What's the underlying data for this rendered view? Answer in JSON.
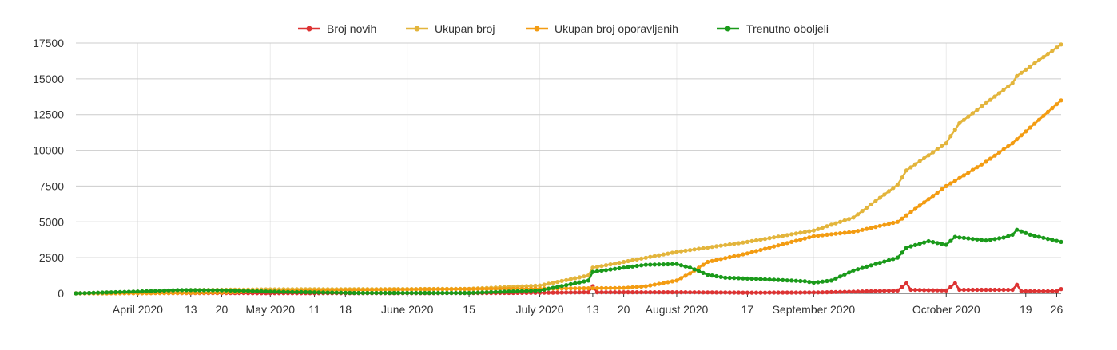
{
  "chart_data": {
    "type": "line",
    "title": "",
    "xlabel": "",
    "ylabel": "",
    "x_range": [
      "2020-03-18",
      "2020-10-27"
    ],
    "ylim": [
      0,
      17500
    ],
    "y_ticks": [
      0,
      2500,
      5000,
      7500,
      10000,
      12500,
      15000,
      17500
    ],
    "y_tick_labels": [
      "0",
      "2500",
      "5000",
      "7500",
      "10000",
      "12500",
      "15000",
      "17500"
    ],
    "x_ticks": [
      {
        "date": "2020-04-01",
        "label": "April 2020"
      },
      {
        "date": "2020-04-13",
        "label": "13"
      },
      {
        "date": "2020-04-20",
        "label": "20"
      },
      {
        "date": "2020-05-01",
        "label": "May 2020"
      },
      {
        "date": "2020-05-11",
        "label": "11"
      },
      {
        "date": "2020-05-18",
        "label": "18"
      },
      {
        "date": "2020-06-01",
        "label": "June 2020"
      },
      {
        "date": "2020-06-15",
        "label": "15"
      },
      {
        "date": "2020-07-01",
        "label": "July 2020"
      },
      {
        "date": "2020-07-13",
        "label": "13"
      },
      {
        "date": "2020-07-20",
        "label": "20"
      },
      {
        "date": "2020-08-01",
        "label": "August 2020"
      },
      {
        "date": "2020-08-17",
        "label": "17"
      },
      {
        "date": "2020-09-01",
        "label": "September 2020"
      },
      {
        "date": "2020-10-01",
        "label": "October 2020"
      },
      {
        "date": "2020-10-19",
        "label": "19"
      },
      {
        "date": "2020-10-26",
        "label": "26"
      }
    ],
    "grid": true,
    "legend_position": "top-center",
    "series": [
      {
        "name": "Broj novih",
        "color": "#dd3333",
        "anchors": [
          [
            "2020-03-18",
            5
          ],
          [
            "2020-04-01",
            30
          ],
          [
            "2020-04-20",
            15
          ],
          [
            "2020-05-15",
            10
          ],
          [
            "2020-06-15",
            15
          ],
          [
            "2020-07-01",
            40
          ],
          [
            "2020-07-12",
            80
          ],
          [
            "2020-07-13",
            500
          ],
          [
            "2020-07-14",
            80
          ],
          [
            "2020-08-01",
            80
          ],
          [
            "2020-08-17",
            50
          ],
          [
            "2020-09-01",
            60
          ],
          [
            "2020-09-10",
            120
          ],
          [
            "2020-09-20",
            200
          ],
          [
            "2020-09-22",
            700
          ],
          [
            "2020-09-23",
            250
          ],
          [
            "2020-10-01",
            200
          ],
          [
            "2020-10-03",
            700
          ],
          [
            "2020-10-04",
            250
          ],
          [
            "2020-10-16",
            250
          ],
          [
            "2020-10-17",
            600
          ],
          [
            "2020-10-18",
            150
          ],
          [
            "2020-10-26",
            150
          ],
          [
            "2020-10-27",
            300
          ]
        ]
      },
      {
        "name": "Ukupan broj",
        "color": "#e3b53c",
        "anchors": [
          [
            "2020-03-18",
            0
          ],
          [
            "2020-04-01",
            120
          ],
          [
            "2020-04-13",
            230
          ],
          [
            "2020-05-01",
            280
          ],
          [
            "2020-06-01",
            300
          ],
          [
            "2020-06-15",
            320
          ],
          [
            "2020-07-01",
            550
          ],
          [
            "2020-07-12",
            1250
          ],
          [
            "2020-07-13",
            1800
          ],
          [
            "2020-07-20",
            2200
          ],
          [
            "2020-08-01",
            2900
          ],
          [
            "2020-08-17",
            3600
          ],
          [
            "2020-09-01",
            4400
          ],
          [
            "2020-09-10",
            5300
          ],
          [
            "2020-09-20",
            7600
          ],
          [
            "2020-09-22",
            8600
          ],
          [
            "2020-10-01",
            10500
          ],
          [
            "2020-10-02",
            11000
          ],
          [
            "2020-10-04",
            11900
          ],
          [
            "2020-10-16",
            14700
          ],
          [
            "2020-10-17",
            15200
          ],
          [
            "2020-10-27",
            17400
          ]
        ]
      },
      {
        "name": "Ukupan broj oporavljenih",
        "color": "#f39c12",
        "anchors": [
          [
            "2020-03-18",
            0
          ],
          [
            "2020-04-01",
            5
          ],
          [
            "2020-04-20",
            50
          ],
          [
            "2020-05-01",
            180
          ],
          [
            "2020-06-01",
            270
          ],
          [
            "2020-06-15",
            300
          ],
          [
            "2020-07-01",
            330
          ],
          [
            "2020-07-20",
            380
          ],
          [
            "2020-07-25",
            500
          ],
          [
            "2020-08-01",
            900
          ],
          [
            "2020-08-04",
            1400
          ],
          [
            "2020-08-08",
            2200
          ],
          [
            "2020-08-17",
            2800
          ],
          [
            "2020-09-01",
            4000
          ],
          [
            "2020-09-10",
            4300
          ],
          [
            "2020-09-20",
            5000
          ],
          [
            "2020-10-01",
            7500
          ],
          [
            "2020-10-10",
            9200
          ],
          [
            "2020-10-16",
            10500
          ],
          [
            "2020-10-27",
            13500
          ]
        ]
      },
      {
        "name": "Trenutno oboljeli",
        "color": "#1a9a1a",
        "anchors": [
          [
            "2020-03-18",
            0
          ],
          [
            "2020-04-01",
            130
          ],
          [
            "2020-04-10",
            230
          ],
          [
            "2020-04-20",
            220
          ],
          [
            "2020-05-01",
            120
          ],
          [
            "2020-05-20",
            30
          ],
          [
            "2020-06-15",
            30
          ],
          [
            "2020-07-01",
            200
          ],
          [
            "2020-07-12",
            900
          ],
          [
            "2020-07-13",
            1500
          ],
          [
            "2020-07-20",
            1800
          ],
          [
            "2020-07-25",
            2000
          ],
          [
            "2020-08-01",
            2050
          ],
          [
            "2020-08-04",
            1800
          ],
          [
            "2020-08-08",
            1300
          ],
          [
            "2020-08-12",
            1100
          ],
          [
            "2020-08-20",
            1000
          ],
          [
            "2020-08-30",
            850
          ],
          [
            "2020-09-01",
            750
          ],
          [
            "2020-09-05",
            900
          ],
          [
            "2020-09-10",
            1600
          ],
          [
            "2020-09-20",
            2500
          ],
          [
            "2020-09-22",
            3200
          ],
          [
            "2020-09-27",
            3650
          ],
          [
            "2020-10-01",
            3400
          ],
          [
            "2020-10-03",
            3950
          ],
          [
            "2020-10-10",
            3700
          ],
          [
            "2020-10-14",
            3900
          ],
          [
            "2020-10-16",
            4100
          ],
          [
            "2020-10-17",
            4450
          ],
          [
            "2020-10-20",
            4100
          ],
          [
            "2020-10-27",
            3600
          ]
        ]
      }
    ]
  }
}
